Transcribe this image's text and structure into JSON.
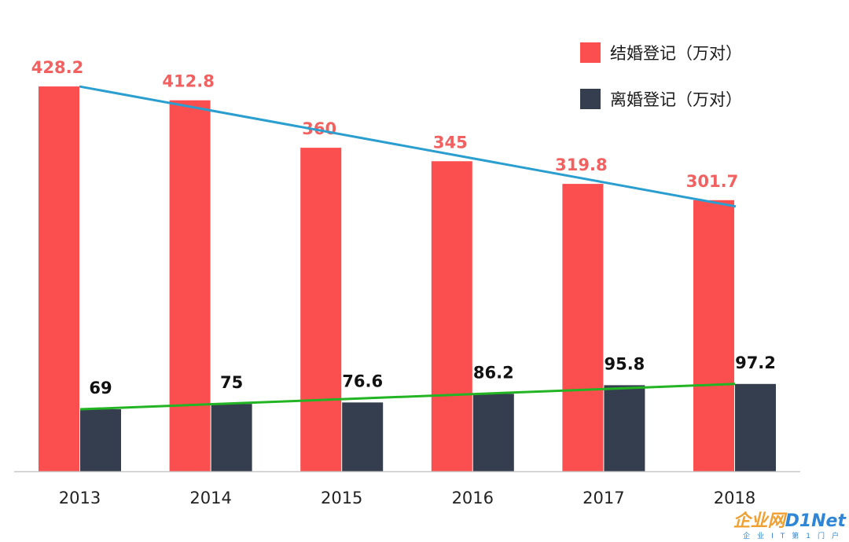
{
  "chart_data": {
    "type": "bar",
    "categories": [
      "2013",
      "2014",
      "2015",
      "2016",
      "2017",
      "2018"
    ],
    "series": [
      {
        "name": "结婚登记（万对）",
        "values": [
          428.2,
          412.8,
          360,
          345,
          319.8,
          301.7
        ],
        "color": "#fb4f4f",
        "label_color": "#f36060"
      },
      {
        "name": "离婚登记（万对）",
        "values": [
          69,
          75,
          76.6,
          86.2,
          95.8,
          97.2
        ],
        "color": "#353e4e",
        "label_color": "#111111"
      }
    ],
    "value_labels": {
      "marriage": [
        "428.2",
        "412.8",
        "360",
        "345",
        "319.8",
        "301.7"
      ],
      "divorce": [
        "69",
        "75",
        "76.6",
        "86.2",
        "95.8",
        "97.2"
      ]
    },
    "trend_lines": [
      {
        "series": "结婚登记（万对）",
        "color": "#2b9ed0",
        "from": 428.2,
        "to": 301.7
      },
      {
        "series": "离婚登记（万对）",
        "color": "#22b422",
        "from": 69,
        "to": 97.2
      }
    ],
    "ylim": [
      0,
      430
    ],
    "grid": false,
    "legend_position": "top-right",
    "title": "",
    "xlabel": "",
    "ylabel": ""
  },
  "legend": {
    "items": [
      {
        "label": "结婚登记（万对）",
        "color": "#fb4f4f"
      },
      {
        "label": "离婚登记（万对）",
        "color": "#353e4e"
      }
    ]
  },
  "watermark": {
    "main_prefix": "企业网",
    "main_suffix": "D1Net",
    "sub": "企业IT第1门户"
  }
}
